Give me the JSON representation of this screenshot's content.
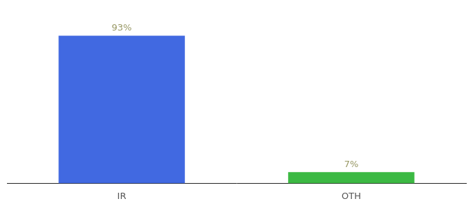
{
  "chart_data": {
    "type": "bar",
    "categories": [
      "IR",
      "OTH"
    ],
    "values": [
      93,
      7
    ],
    "value_labels": [
      "93%",
      "7%"
    ],
    "colors": [
      "#4169e1",
      "#3cb943"
    ],
    "ylim": [
      0,
      105
    ],
    "data_labels": true,
    "grid": false,
    "tick_labels": "x"
  }
}
